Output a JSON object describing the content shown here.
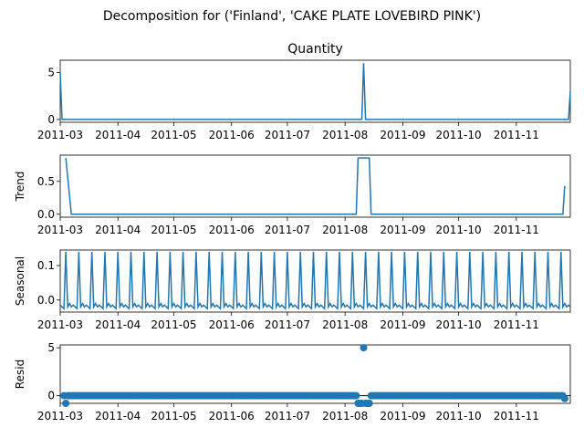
{
  "figure": {
    "suptitle": "Decomposition for ('Finland', 'CAKE PLATE LOVEBIRD PINK')"
  },
  "chart_data": [
    {
      "type": "line",
      "title": "Quantity",
      "ylabel": "",
      "ylim": [
        -0.3,
        6.3
      ],
      "yticks": [
        0,
        5
      ],
      "x_range": [
        "2011-03-01",
        "2011-11-30"
      ],
      "xticks": [
        "2011-03",
        "2011-04",
        "2011-05",
        "2011-06",
        "2011-07",
        "2011-08",
        "2011-09",
        "2011-10",
        "2011-11"
      ],
      "series": [
        {
          "color": "#1f77b4",
          "points": [
            [
              "2011-03-01",
              5
            ],
            [
              "2011-03-02",
              0
            ],
            [
              "2011-08-10",
              0
            ],
            [
              "2011-08-11",
              6
            ],
            [
              "2011-08-12",
              0
            ],
            [
              "2011-11-29",
              0
            ],
            [
              "2011-11-30",
              3
            ]
          ]
        }
      ]
    },
    {
      "type": "line",
      "title": "",
      "ylabel": "Trend",
      "ylim": [
        -0.045,
        0.9
      ],
      "yticks": [
        0.0,
        0.5
      ],
      "x_range": [
        "2011-03-01",
        "2011-11-30"
      ],
      "xticks": [
        "2011-03",
        "2011-04",
        "2011-05",
        "2011-06",
        "2011-07",
        "2011-08",
        "2011-09",
        "2011-10",
        "2011-11"
      ],
      "series": [
        {
          "color": "#1f77b4",
          "points": [
            [
              "2011-03-04",
              0.857
            ],
            [
              "2011-03-07",
              0
            ],
            [
              "2011-08-07",
              0
            ],
            [
              "2011-08-08",
              0.857
            ],
            [
              "2011-08-14",
              0.857
            ],
            [
              "2011-08-15",
              0
            ],
            [
              "2011-11-26",
              0
            ],
            [
              "2011-11-27",
              0.43
            ]
          ]
        }
      ]
    },
    {
      "type": "line",
      "title": "",
      "ylabel": "Seasonal",
      "ylim": [
        -0.035,
        0.145
      ],
      "yticks": [
        0.0,
        0.1
      ],
      "x_range": [
        "2011-03-01",
        "2011-11-30"
      ],
      "xticks": [
        "2011-03",
        "2011-04",
        "2011-05",
        "2011-06",
        "2011-07",
        "2011-08",
        "2011-09",
        "2011-10",
        "2011-11"
      ],
      "series": [
        {
          "color": "#1f77b4",
          "period_days": 7,
          "first_peak": "2011-03-04",
          "weekly_pattern": [
            0.14,
            -0.02,
            -0.01,
            -0.02,
            -0.015,
            -0.02,
            -0.025
          ]
        }
      ]
    },
    {
      "type": "scatter",
      "title": "",
      "ylabel": "Resid",
      "ylim": [
        -0.8,
        5.3
      ],
      "yticks": [
        0,
        5
      ],
      "x_range": [
        "2011-03-01",
        "2011-11-30"
      ],
      "xticks": [
        "2011-03",
        "2011-04",
        "2011-05",
        "2011-06",
        "2011-07",
        "2011-08",
        "2011-09",
        "2011-10",
        "2011-11"
      ],
      "baseline": 0,
      "series": [
        {
          "color": "#1f77b4",
          "outliers": [
            [
              "2011-03-04",
              -0.8
            ],
            [
              "2011-08-08",
              -0.8
            ],
            [
              "2011-08-09",
              -0.8
            ],
            [
              "2011-08-10",
              -0.8
            ],
            [
              "2011-08-11",
              5.0
            ],
            [
              "2011-08-12",
              -0.8
            ],
            [
              "2011-08-13",
              -0.8
            ],
            [
              "2011-08-14",
              -0.8
            ],
            [
              "2011-11-27",
              -0.3
            ]
          ],
          "default_value": 0
        }
      ]
    }
  ]
}
